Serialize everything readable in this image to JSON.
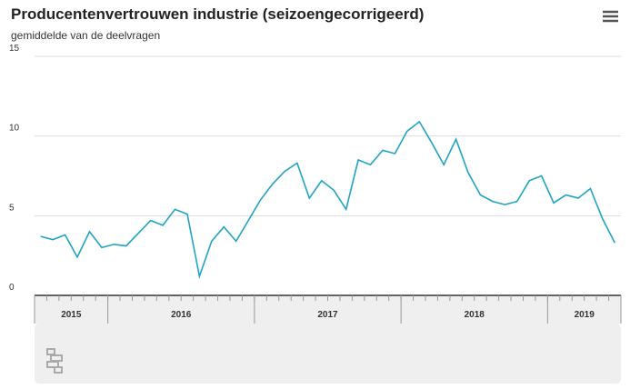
{
  "chart_data": {
    "type": "line",
    "title": "Producentenvertrouwen industrie (seizoengecorrigeerd)",
    "subtitle": "gemiddelde van de deelvragen",
    "categories": [
      null,
      null,
      null,
      null,
      null,
      null,
      null,
      null,
      null,
      null,
      null,
      null,
      null,
      null,
      null,
      null,
      null,
      null,
      null,
      null,
      null,
      null,
      null,
      null,
      null,
      null,
      null,
      null,
      null,
      null,
      null,
      null,
      null,
      null,
      null,
      null,
      null,
      null,
      null,
      null,
      null,
      null,
      null,
      null,
      null,
      null,
      null,
      null
    ],
    "x_groups": [
      {
        "label": "2015",
        "count": 6
      },
      {
        "label": "2016",
        "count": 12
      },
      {
        "label": "2017",
        "count": 12
      },
      {
        "label": "2018",
        "count": 12
      },
      {
        "label": "2019",
        "count": 6
      }
    ],
    "series": [
      {
        "color": "#1fa3c4",
        "values": [
          3.7,
          3.5,
          3.8,
          2.4,
          4.0,
          3.0,
          3.2,
          3.1,
          3.9,
          4.7,
          4.4,
          5.4,
          5.1,
          1.2,
          3.4,
          4.3,
          3.4,
          4.7,
          6.0,
          7.0,
          7.8,
          8.3,
          6.1,
          7.2,
          6.6,
          5.4,
          8.5,
          8.2,
          9.1,
          8.9,
          10.3,
          10.9,
          9.6,
          8.2,
          9.8,
          7.7,
          6.3,
          5.9,
          5.7,
          5.9,
          7.2,
          7.5,
          5.8,
          6.3,
          6.1,
          6.7,
          4.8,
          3.3
        ]
      }
    ],
    "ylim": [
      0,
      15
    ],
    "yticks": [
      0,
      5,
      10,
      15
    ],
    "grid": true
  }
}
